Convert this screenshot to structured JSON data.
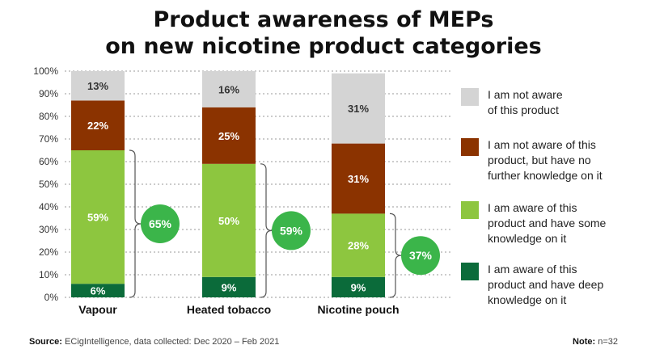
{
  "title_lines": [
    "Product awareness of MEPs",
    "on new nicotine product categories"
  ],
  "chart_data": {
    "type": "bar",
    "stacked": true,
    "categories": [
      "Vapour",
      "Heated tobacco",
      "Nicotine pouch"
    ],
    "series": [
      {
        "name": "I am aware of this product and have deep knowledge on it",
        "color": "#0b6b3a",
        "values": [
          6,
          9,
          9
        ]
      },
      {
        "name": "I am aware of this product and have some knowledge on it",
        "color": "#8dc63f",
        "values": [
          59,
          50,
          28
        ]
      },
      {
        "name": "I am not aware of this product, but have no further knowledge on it",
        "color": "#8b3300",
        "values": [
          22,
          25,
          31
        ]
      },
      {
        "name": "I am not aware of this product",
        "color": "#d4d4d4",
        "values": [
          13,
          16,
          31
        ]
      }
    ],
    "bracket_totals": [
      "65%",
      "59%",
      "37%"
    ],
    "bracket_color": "#3bb54a",
    "ylim": [
      0,
      100
    ],
    "yticks": [
      "0%",
      "10%",
      "20%",
      "30%",
      "40%",
      "50%",
      "60%",
      "70%",
      "80%",
      "90%",
      "100%"
    ],
    "grid": true
  },
  "legend": [
    {
      "label": "I am not aware of this product",
      "lines": [
        "I am not aware",
        "of this product"
      ],
      "color": "#d4d4d4"
    },
    {
      "label": "I am not aware of this product, but have no further knowledge on it",
      "lines": [
        "I am not aware of this",
        "product, but have no",
        "further knowledge on it"
      ],
      "color": "#8b3300"
    },
    {
      "label": "I am aware of this product and have some knowledge on it",
      "lines": [
        "I am aware of this",
        "product and have some",
        "knowledge on it"
      ],
      "color": "#8dc63f"
    },
    {
      "label": "I am aware of this product and have deep knowledge on it",
      "lines": [
        "I am aware of this",
        "product and have deep",
        "knowledge on it"
      ],
      "color": "#0b6b3a"
    }
  ],
  "footer": {
    "source_label": "Source:",
    "source_text": "ECigIntelligence, data collected: Dec 2020 – Feb 2021",
    "note_label": "Note:",
    "note_text": "n=32"
  }
}
